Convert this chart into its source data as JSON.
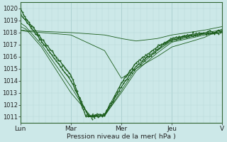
{
  "xlabel": "Pression niveau de la mer( hPa )",
  "ylim": [
    1010.5,
    1020.5
  ],
  "yticks": [
    1011,
    1012,
    1013,
    1014,
    1015,
    1016,
    1017,
    1018,
    1019,
    1020
  ],
  "day_labels": [
    "Lun",
    "Mar",
    "Mer",
    "Jeu",
    "V"
  ],
  "day_positions": [
    0,
    48,
    96,
    144,
    192
  ],
  "bg_color": "#cce8e8",
  "grid_minor_color": "#b8d8d8",
  "grid_major_color": "#a0c8c8",
  "line_color": "#1a5c1a",
  "total_points": 193,
  "lw_thin": 0.6,
  "lw_thick": 0.9,
  "marker_size": 1.2,
  "figsize": [
    3.2,
    2.0
  ],
  "dpi": 100
}
